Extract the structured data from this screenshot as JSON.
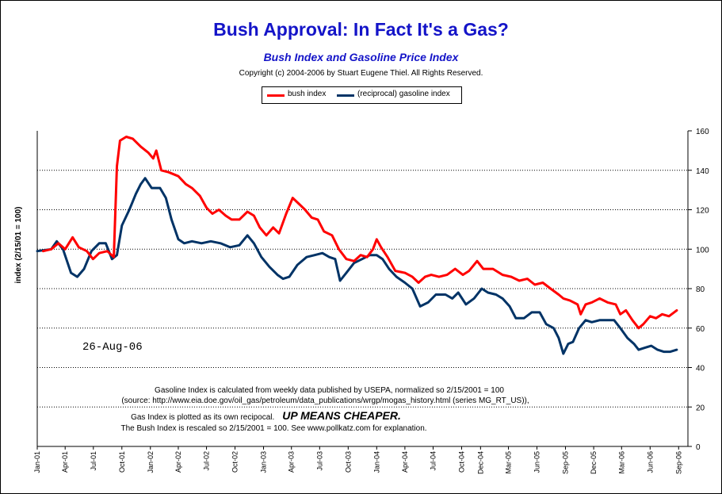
{
  "title": "Bush Approval:  In Fact It's a Gas?",
  "subtitle": "Bush Index and Gasoline Price Index",
  "copyright": "Copyright (c) 2004-2006 by Stuart Eugene Thiel.  All Rights Reserved.",
  "date_stamp": "26-Aug-06",
  "notes": {
    "line1": "Gasoline Index is calculated from weekly data published by USEPA, normalized so 2/15/2001 = 100",
    "line2": "(source:  http://www.eia.doe.gov/oil_gas/petroleum/data_publications/wrgp/mogas_history.html (series MG_RT_US)),",
    "line3a": "Gas Index is plotted as its own recipocal.",
    "line3b": "UP MEANS CHEAPER.",
    "line4": "The Bush Index is rescaled so 2/15/2001 = 100.  See www.pollkatz.com for explanation."
  },
  "colors": {
    "bush": "#ff0000",
    "gas": "#003366",
    "title": "#1414c8"
  },
  "chart_data": {
    "type": "line",
    "title": "Bush Approval:  In Fact It's a Gas?",
    "subtitle": "Bush Index and Gasoline Price Index",
    "xlabel": "",
    "ylabel": "index (2/15/01 = 100)",
    "ylim": [
      0,
      160
    ],
    "yticks": [
      0,
      20,
      40,
      60,
      80,
      100,
      120,
      140,
      160
    ],
    "y_axis_side": "right",
    "xlim": [
      "2001-01",
      "2006-10"
    ],
    "xtick_labels": [
      "Jan-01",
      "Apr-01",
      "Jul-01",
      "Oct-01",
      "Jan-02",
      "Apr-02",
      "Jul-02",
      "Oct-02",
      "Jan-03",
      "Apr-03",
      "Jul-03",
      "Oct-03",
      "Jan-04",
      "Apr-04",
      "Jul-04",
      "Oct-04",
      "Dec-04",
      "Mar-05",
      "Jun-05",
      "Sep-05",
      "Dec-05",
      "Mar-06",
      "Jun-06",
      "Sep-06"
    ],
    "xtick_dates": [
      "2001-01",
      "2001-04",
      "2001-07",
      "2001-10",
      "2002-01",
      "2002-04",
      "2002-07",
      "2002-10",
      "2003-01",
      "2003-04",
      "2003-07",
      "2003-10",
      "2004-01",
      "2004-04",
      "2004-07",
      "2004-10",
      "2004-12",
      "2005-03",
      "2005-06",
      "2005-09",
      "2005-12",
      "2006-03",
      "2006-06",
      "2006-09"
    ],
    "grid": "horizontal dotted",
    "legend": "top-center",
    "series": [
      {
        "name": "bush index",
        "color": "#ff0000",
        "points": [
          [
            "2001-01-20",
            99
          ],
          [
            "2001-02-15",
            100
          ],
          [
            "2001-03-10",
            103
          ],
          [
            "2001-04-01",
            100
          ],
          [
            "2001-04-25",
            106
          ],
          [
            "2001-05-15",
            101
          ],
          [
            "2001-06-10",
            99
          ],
          [
            "2001-06-30",
            95
          ],
          [
            "2001-07-20",
            98
          ],
          [
            "2001-08-15",
            99
          ],
          [
            "2001-09-05",
            96
          ],
          [
            "2001-09-15",
            142
          ],
          [
            "2001-09-25",
            155
          ],
          [
            "2001-10-15",
            157
          ],
          [
            "2001-11-05",
            156
          ],
          [
            "2001-12-01",
            152
          ],
          [
            "2001-12-25",
            149
          ],
          [
            "2002-01-10",
            146
          ],
          [
            "2002-01-20",
            150
          ],
          [
            "2002-02-05",
            140
          ],
          [
            "2002-03-01",
            139
          ],
          [
            "2002-04-01",
            137
          ],
          [
            "2002-04-25",
            133
          ],
          [
            "2002-05-15",
            131
          ],
          [
            "2002-06-10",
            127
          ],
          [
            "2002-07-01",
            121
          ],
          [
            "2002-07-20",
            118
          ],
          [
            "2002-08-10",
            120
          ],
          [
            "2002-09-01",
            117
          ],
          [
            "2002-09-20",
            115
          ],
          [
            "2002-10-15",
            115
          ],
          [
            "2002-11-10",
            119
          ],
          [
            "2002-12-01",
            117
          ],
          [
            "2002-12-20",
            111
          ],
          [
            "2003-01-10",
            107
          ],
          [
            "2003-02-01",
            111
          ],
          [
            "2003-02-20",
            108
          ],
          [
            "2003-03-15",
            118
          ],
          [
            "2003-04-05",
            126
          ],
          [
            "2003-04-25",
            123
          ],
          [
            "2003-05-15",
            120
          ],
          [
            "2003-06-05",
            116
          ],
          [
            "2003-06-25",
            115
          ],
          [
            "2003-07-15",
            109
          ],
          [
            "2003-08-10",
            107
          ],
          [
            "2003-09-01",
            100
          ],
          [
            "2003-09-25",
            95
          ],
          [
            "2003-10-20",
            94
          ],
          [
            "2003-11-10",
            97
          ],
          [
            "2003-12-01",
            96
          ],
          [
            "2003-12-20",
            100
          ],
          [
            "2004-01-01",
            105
          ],
          [
            "2004-01-15",
            101
          ],
          [
            "2004-02-05",
            96
          ],
          [
            "2004-03-01",
            89
          ],
          [
            "2004-04-01",
            88
          ],
          [
            "2004-04-25",
            86
          ],
          [
            "2004-05-15",
            83
          ],
          [
            "2004-06-05",
            86
          ],
          [
            "2004-06-25",
            87
          ],
          [
            "2004-07-20",
            86
          ],
          [
            "2004-08-15",
            87
          ],
          [
            "2004-09-10",
            90
          ],
          [
            "2004-10-05",
            87
          ],
          [
            "2004-10-25",
            89
          ],
          [
            "2004-11-20",
            94
          ],
          [
            "2004-12-10",
            90
          ],
          [
            "2005-01-10",
            90
          ],
          [
            "2005-02-10",
            87
          ],
          [
            "2005-03-10",
            86
          ],
          [
            "2005-04-05",
            84
          ],
          [
            "2005-05-01",
            85
          ],
          [
            "2005-05-25",
            82
          ],
          [
            "2005-06-20",
            83
          ],
          [
            "2005-07-15",
            80
          ],
          [
            "2005-08-10",
            77
          ],
          [
            "2005-08-25",
            75
          ],
          [
            "2005-09-15",
            74
          ],
          [
            "2005-10-10",
            72
          ],
          [
            "2005-10-20",
            67
          ],
          [
            "2005-11-05",
            72
          ],
          [
            "2005-11-25",
            73
          ],
          [
            "2005-12-20",
            75
          ],
          [
            "2006-01-15",
            73
          ],
          [
            "2006-02-10",
            72
          ],
          [
            "2006-02-25",
            67
          ],
          [
            "2006-03-15",
            69
          ],
          [
            "2006-04-05",
            64
          ],
          [
            "2006-04-25",
            60
          ],
          [
            "2006-05-10",
            62
          ],
          [
            "2006-06-01",
            66
          ],
          [
            "2006-06-20",
            65
          ],
          [
            "2006-07-10",
            67
          ],
          [
            "2006-08-01",
            66
          ],
          [
            "2006-08-26",
            69
          ]
        ]
      },
      {
        "name": "(reciprocal) gasoline index",
        "color": "#003366",
        "points": [
          [
            "2001-01-01",
            99
          ],
          [
            "2001-02-15",
            100
          ],
          [
            "2001-03-05",
            104
          ],
          [
            "2001-03-25",
            100
          ],
          [
            "2001-04-20",
            88
          ],
          [
            "2001-05-10",
            86
          ],
          [
            "2001-06-01",
            90
          ],
          [
            "2001-06-25",
            99
          ],
          [
            "2001-07-20",
            103
          ],
          [
            "2001-08-10",
            103
          ],
          [
            "2001-08-30",
            95
          ],
          [
            "2001-09-15",
            97
          ],
          [
            "2001-10-01",
            112
          ],
          [
            "2001-10-25",
            120
          ],
          [
            "2001-11-15",
            128
          ],
          [
            "2001-12-01",
            133
          ],
          [
            "2001-12-15",
            136
          ],
          [
            "2002-01-05",
            131
          ],
          [
            "2002-02-01",
            131
          ],
          [
            "2002-02-20",
            126
          ],
          [
            "2002-03-10",
            115
          ],
          [
            "2002-04-01",
            105
          ],
          [
            "2002-04-20",
            103
          ],
          [
            "2002-05-15",
            104
          ],
          [
            "2002-06-15",
            103
          ],
          [
            "2002-07-15",
            104
          ],
          [
            "2002-08-15",
            103
          ],
          [
            "2002-09-15",
            101
          ],
          [
            "2002-10-15",
            102
          ],
          [
            "2002-11-10",
            107
          ],
          [
            "2002-12-01",
            103
          ],
          [
            "2002-12-25",
            96
          ],
          [
            "2003-01-20",
            91
          ],
          [
            "2003-02-15",
            87
          ],
          [
            "2003-03-05",
            85
          ],
          [
            "2003-03-25",
            86
          ],
          [
            "2003-04-20",
            92
          ],
          [
            "2003-05-20",
            96
          ],
          [
            "2003-06-15",
            97
          ],
          [
            "2003-07-10",
            98
          ],
          [
            "2003-08-01",
            96
          ],
          [
            "2003-08-20",
            95
          ],
          [
            "2003-09-05",
            84
          ],
          [
            "2003-09-25",
            88
          ],
          [
            "2003-10-20",
            93
          ],
          [
            "2003-11-15",
            95
          ],
          [
            "2003-12-10",
            97
          ],
          [
            "2004-01-01",
            97
          ],
          [
            "2004-01-20",
            95
          ],
          [
            "2004-02-10",
            90
          ],
          [
            "2004-03-05",
            86
          ],
          [
            "2004-04-01",
            83
          ],
          [
            "2004-04-25",
            80
          ],
          [
            "2004-05-20",
            71
          ],
          [
            "2004-06-15",
            73
          ],
          [
            "2004-07-10",
            77
          ],
          [
            "2004-08-10",
            77
          ],
          [
            "2004-09-01",
            75
          ],
          [
            "2004-09-20",
            78
          ],
          [
            "2004-10-15",
            72
          ],
          [
            "2004-11-10",
            75
          ],
          [
            "2004-12-05",
            80
          ],
          [
            "2004-12-25",
            78
          ],
          [
            "2005-01-20",
            77
          ],
          [
            "2005-02-10",
            75
          ],
          [
            "2005-03-05",
            71
          ],
          [
            "2005-03-25",
            65
          ],
          [
            "2005-04-20",
            65
          ],
          [
            "2005-05-15",
            68
          ],
          [
            "2005-06-10",
            68
          ],
          [
            "2005-07-01",
            62
          ],
          [
            "2005-07-25",
            60
          ],
          [
            "2005-08-10",
            55
          ],
          [
            "2005-08-25",
            47
          ],
          [
            "2005-09-10",
            52
          ],
          [
            "2005-09-25",
            53
          ],
          [
            "2005-10-15",
            60
          ],
          [
            "2005-11-05",
            64
          ],
          [
            "2005-11-25",
            63
          ],
          [
            "2005-12-20",
            64
          ],
          [
            "2006-01-15",
            64
          ],
          [
            "2006-02-05",
            64
          ],
          [
            "2006-02-25",
            60
          ],
          [
            "2006-03-20",
            55
          ],
          [
            "2006-04-10",
            52
          ],
          [
            "2006-04-25",
            49
          ],
          [
            "2006-05-15",
            50
          ],
          [
            "2006-06-05",
            51
          ],
          [
            "2006-06-25",
            49
          ],
          [
            "2006-07-15",
            48
          ],
          [
            "2006-08-05",
            48
          ],
          [
            "2006-08-26",
            49
          ]
        ]
      }
    ]
  }
}
